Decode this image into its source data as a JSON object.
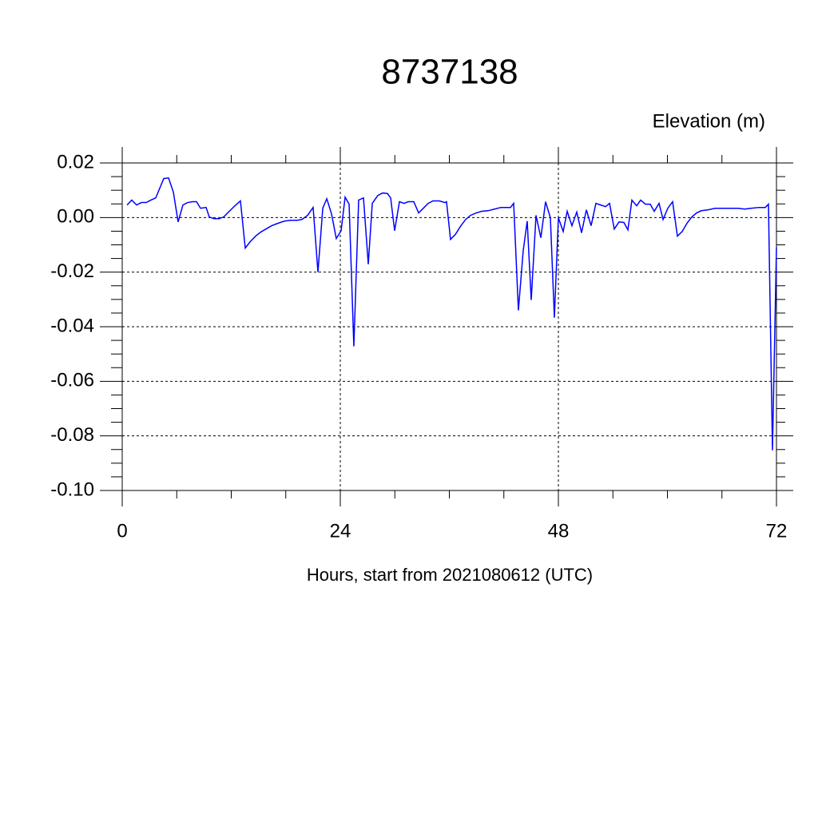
{
  "chart_data": {
    "type": "line",
    "title": "8737138",
    "ylabel": "Elevation (m)",
    "xlabel": "Hours, start from 2021080612 (UTC)",
    "series": [
      {
        "color": "#0000ff",
        "x": [
          0.53,
          1.05,
          1.58,
          2.11,
          2.64,
          3.16,
          3.69,
          4.57,
          5.1,
          5.63,
          6.15,
          6.68,
          7.21,
          7.74,
          8.18,
          8.62,
          9.23,
          9.58,
          10.11,
          10.64,
          11.16,
          11.69,
          12.4,
          13.01,
          13.54,
          14.07,
          14.68,
          15.21,
          15.82,
          16.44,
          17.14,
          17.85,
          18.55,
          19.25,
          19.78,
          20.4,
          21.01,
          21.54,
          22.07,
          22.51,
          23.03,
          23.56,
          24.09,
          24.53,
          24.97,
          25.49,
          26.02,
          26.55,
          27.08,
          27.52,
          28.13,
          28.66,
          29.19,
          29.54,
          29.98,
          30.51,
          31.03,
          31.47,
          32.09,
          32.62,
          33.14,
          33.67,
          34.2,
          34.9,
          35.52,
          35.69,
          36.13,
          36.66,
          37.27,
          37.8,
          38.33,
          38.95,
          39.56,
          40.26,
          40.97,
          41.67,
          42.37,
          42.73,
          43.08,
          43.6,
          44.13,
          44.57,
          45.01,
          45.54,
          46.07,
          46.59,
          47.12,
          47.56,
          48.0,
          48.53,
          48.97,
          49.49,
          50.02,
          50.55,
          51.08,
          51.6,
          52.13,
          52.66,
          53.19,
          53.63,
          54.15,
          54.68,
          55.21,
          55.65,
          56.09,
          56.62,
          57.05,
          57.58,
          58.11,
          58.55,
          59.08,
          59.52,
          60.04,
          60.57,
          61.1,
          61.63,
          62.15,
          62.68,
          63.21,
          63.74,
          64.44,
          65.23,
          66.02,
          66.9,
          67.78,
          68.48,
          69.19,
          70.07,
          70.77,
          71.12,
          71.56,
          72.0
        ],
        "values": [
          0.0046,
          0.0064,
          0.0046,
          0.0055,
          0.0055,
          0.0064,
          0.0072,
          0.0143,
          0.0145,
          0.0093,
          -0.0016,
          0.0046,
          0.0055,
          0.0058,
          0.0058,
          0.0034,
          0.0037,
          0.0002,
          -0.0004,
          -0.0004,
          0.0002,
          0.002,
          0.0043,
          0.0061,
          -0.0112,
          -0.0089,
          -0.0068,
          -0.0054,
          -0.0042,
          -0.003,
          -0.0021,
          -0.0013,
          -0.001,
          -0.001,
          -0.0007,
          0.0008,
          0.0037,
          -0.02,
          0.0034,
          0.0069,
          0.0014,
          -0.0077,
          -0.0048,
          0.0075,
          0.0049,
          -0.0472,
          0.0064,
          0.0072,
          -0.0171,
          0.0052,
          0.0081,
          0.009,
          0.0088,
          0.0072,
          -0.0048,
          0.0058,
          0.0052,
          0.0058,
          0.0058,
          0.0017,
          0.0034,
          0.0052,
          0.0061,
          0.0061,
          0.0055,
          0.0058,
          -0.008,
          -0.0062,
          -0.003,
          -0.0007,
          0.0008,
          0.0017,
          0.0023,
          0.0025,
          0.0031,
          0.0037,
          0.0037,
          0.0037,
          0.0052,
          -0.034,
          -0.0121,
          -0.0013,
          -0.0302,
          0.0008,
          -0.0074,
          0.0058,
          -0.0001,
          -0.0367,
          -0.0001,
          -0.0051,
          0.0023,
          -0.003,
          0.002,
          -0.0056,
          0.0028,
          -0.003,
          0.0052,
          0.0046,
          0.004,
          0.0052,
          -0.0042,
          -0.0016,
          -0.0018,
          -0.0045,
          0.0064,
          0.0043,
          0.0064,
          0.0049,
          0.0049,
          0.0023,
          0.0052,
          -0.0007,
          0.0034,
          0.0058,
          -0.0068,
          -0.0051,
          -0.0021,
          0.0002,
          0.0017,
          0.0025,
          0.0028,
          0.0034,
          0.0034,
          0.0034,
          0.0034,
          0.0031,
          0.0034,
          0.0037,
          0.0037,
          0.0049,
          -0.0853,
          -0.0109
        ]
      }
    ],
    "xlim": [
      0,
      72
    ],
    "xticks": [
      0,
      24,
      48,
      72
    ],
    "ylim": [
      -0.1,
      0.02
    ],
    "yticks": [
      {
        "value": -0.1,
        "label": "-0.10"
      },
      -0.08,
      -0.06,
      -0.04,
      -0.02,
      {
        "value": 0,
        "label": "0.00"
      },
      0.02
    ],
    "grid": true
  }
}
